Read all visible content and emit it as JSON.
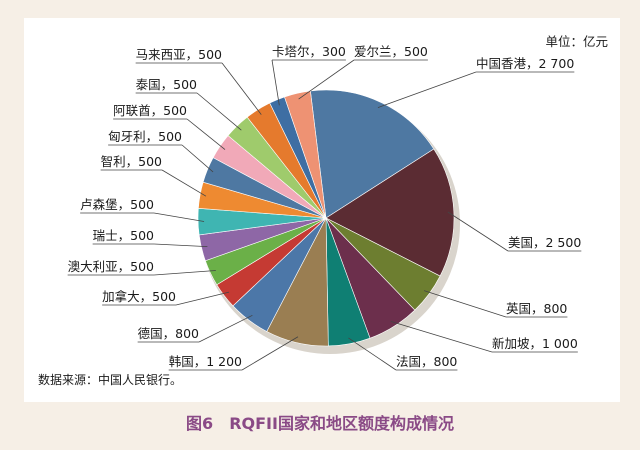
{
  "caption": {
    "figure_no": "图6",
    "title": "RQFII国家和地区额度构成情况"
  },
  "chart_data": {
    "type": "pie",
    "unit_label": "单位：亿元",
    "source": "数据来源：中国人民银行。",
    "slices": [
      {
        "name": "中国香港",
        "value": 2700,
        "value_text": "2 700",
        "color": "#4e78a2"
      },
      {
        "name": "美国",
        "value": 2500,
        "value_text": "2 500",
        "color": "#5b2c33"
      },
      {
        "name": "英国",
        "value": 800,
        "value_text": "800",
        "color": "#6d7e30"
      },
      {
        "name": "新加坡",
        "value": 1000,
        "value_text": "1 000",
        "color": "#6c2f4c"
      },
      {
        "name": "法国",
        "value": 800,
        "value_text": "800",
        "color": "#0f7f73"
      },
      {
        "name": "韩国",
        "value": 1200,
        "value_text": "1 200",
        "color": "#9a7e52"
      },
      {
        "name": "德国",
        "value": 800,
        "value_text": "800",
        "color": "#4c77a8"
      },
      {
        "name": "加拿大",
        "value": 500,
        "value_text": "500",
        "color": "#c53a33"
      },
      {
        "name": "澳大利亚",
        "value": 500,
        "value_text": "500",
        "color": "#6bb048"
      },
      {
        "name": "瑞士",
        "value": 500,
        "value_text": "500",
        "color": "#8e67a6"
      },
      {
        "name": "卢森堡",
        "value": 500,
        "value_text": "500",
        "color": "#3fb5b2"
      },
      {
        "name": "智利",
        "value": 500,
        "value_text": "500",
        "color": "#ee8a31"
      },
      {
        "name": "匈牙利",
        "value": 500,
        "value_text": "500",
        "color": "#4e78a2"
      },
      {
        "name": "阿联酋",
        "value": 500,
        "value_text": "500",
        "color": "#f1a9b8"
      },
      {
        "name": "泰国",
        "value": 500,
        "value_text": "500",
        "color": "#9fcb6c"
      },
      {
        "name": "马来西亚",
        "value": 500,
        "value_text": "500",
        "color": "#e57a2d"
      },
      {
        "name": "卡塔尔",
        "value": 300,
        "value_text": "300",
        "color": "#3e6ea3"
      },
      {
        "name": "爱尔兰",
        "value": 500,
        "value_text": "500",
        "color": "#ee9273"
      }
    ]
  }
}
